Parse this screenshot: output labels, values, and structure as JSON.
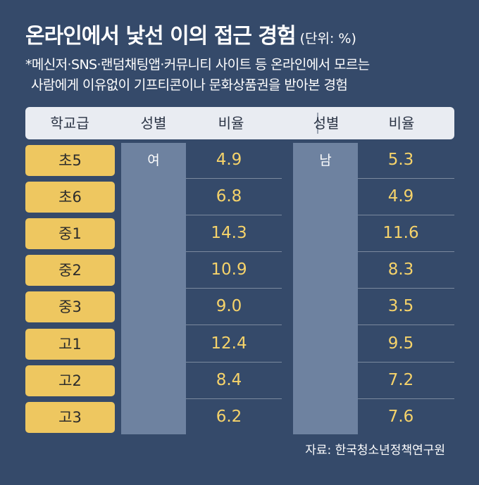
{
  "title": "온라인에서 낯선 이의 접근 경험",
  "unit": "(단위: %)",
  "note_lines": [
    "*메신저·SNS·랜덤채팅앱·커뮤니티 사이트 등 온라인에서 모르는",
    "사람에게 이유없이 기프티콘이나 문화상품권을 받아본 경험"
  ],
  "headers": {
    "grade": "학교급",
    "gender_female": "성별",
    "ratio_female": "비율",
    "gender_male": "성별",
    "ratio_male": "비율"
  },
  "gender_female_label": "여",
  "gender_male_label": "남",
  "source": "자료: 한국청소년정책연구원",
  "chart_data": {
    "type": "table",
    "columns": [
      "학교급",
      "성별",
      "비율",
      "성별",
      "비율"
    ],
    "categories": [
      "초5",
      "초6",
      "중1",
      "중2",
      "중3",
      "고1",
      "고2",
      "고3"
    ],
    "series": [
      {
        "name": "여",
        "values": [
          4.9,
          6.8,
          14.3,
          10.9,
          9.0,
          12.4,
          8.4,
          6.2
        ]
      },
      {
        "name": "남",
        "values": [
          5.3,
          4.9,
          11.6,
          8.3,
          3.5,
          9.5,
          7.2,
          7.6
        ]
      }
    ],
    "value_labels": {
      "female": [
        "4.9",
        "6.8",
        "14.3",
        "10.9",
        "9.0",
        "12.4",
        "8.4",
        "6.2"
      ],
      "male": [
        "5.3",
        "4.9",
        "11.6",
        "8.3",
        "3.5",
        "9.5",
        "7.2",
        "7.6"
      ]
    },
    "colors": {
      "background": "#354a6a",
      "grade_box": "#eec760",
      "value_text": "#f6d36a",
      "gender_column": "#6e82a0",
      "header_bar": "#e9ecf2"
    }
  }
}
